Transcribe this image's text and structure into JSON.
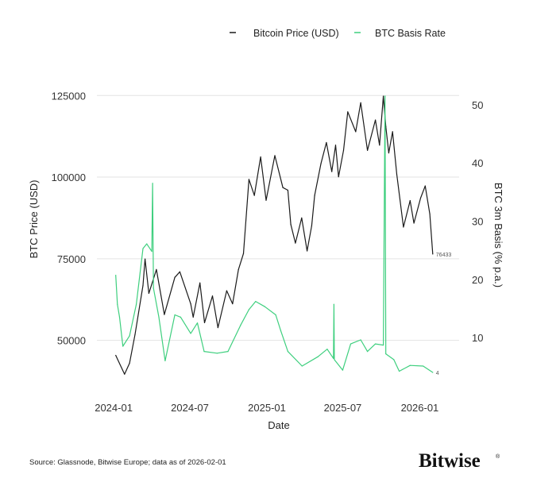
{
  "chart_data": {
    "type": "line",
    "xlabel": "Date",
    "ylabel_left": "BTC Price (USD)",
    "ylabel_right": "BTC 3m Basis (% p.a.)",
    "xlim": [
      "2023-11-22",
      "2026-04-05"
    ],
    "ylim_left": [
      37500,
      127500
    ],
    "ylim_right": [
      2.5,
      53
    ],
    "x_ticks": [
      "2024-01",
      "2024-07",
      "2025-01",
      "2025-07",
      "2026-01"
    ],
    "y_ticks_left": [
      50000,
      75000,
      100000,
      125000
    ],
    "y_ticks_right": [
      10,
      20,
      30,
      40,
      50
    ],
    "grid": "horizontal",
    "legend_position": "top-right",
    "colors": {
      "price": "#1a1a1a",
      "basis": "#3ecf7e"
    },
    "series": [
      {
        "name": "Bitcoin Price (USD)",
        "axis": "left",
        "end_label": "76433",
        "points": [
          [
            "2024-01-06",
            45400
          ],
          [
            "2024-01-27",
            39650
          ],
          [
            "2024-02-08",
            43000
          ],
          [
            "2024-02-21",
            51800
          ],
          [
            "2024-03-11",
            66800
          ],
          [
            "2024-03-16",
            74900
          ],
          [
            "2024-03-25",
            64400
          ],
          [
            "2024-04-12",
            71700
          ],
          [
            "2024-05-01",
            57900
          ],
          [
            "2024-05-26",
            69300
          ],
          [
            "2024-06-07",
            71000
          ],
          [
            "2024-07-03",
            61200
          ],
          [
            "2024-07-09",
            57100
          ],
          [
            "2024-07-25",
            67600
          ],
          [
            "2024-08-05",
            55400
          ],
          [
            "2024-08-24",
            63600
          ],
          [
            "2024-09-06",
            53900
          ],
          [
            "2024-09-27",
            65200
          ],
          [
            "2024-10-11",
            61200
          ],
          [
            "2024-10-25",
            71700
          ],
          [
            "2024-11-06",
            76600
          ],
          [
            "2024-11-19",
            99300
          ],
          [
            "2024-12-02",
            94400
          ],
          [
            "2024-12-17",
            106200
          ],
          [
            "2024-12-30",
            92900
          ],
          [
            "2025-01-20",
            106600
          ],
          [
            "2025-02-08",
            96800
          ],
          [
            "2025-02-20",
            96000
          ],
          [
            "2025-02-27",
            85500
          ],
          [
            "2025-03-10",
            79800
          ],
          [
            "2025-03-25",
            87500
          ],
          [
            "2025-04-07",
            77400
          ],
          [
            "2025-04-18",
            85100
          ],
          [
            "2025-04-25",
            94400
          ],
          [
            "2025-05-10",
            104100
          ],
          [
            "2025-05-23",
            110600
          ],
          [
            "2025-06-05",
            101700
          ],
          [
            "2025-06-14",
            109800
          ],
          [
            "2025-06-21",
            100100
          ],
          [
            "2025-07-03",
            108200
          ],
          [
            "2025-07-13",
            120000
          ],
          [
            "2025-08-01",
            113900
          ],
          [
            "2025-08-13",
            122800
          ],
          [
            "2025-08-29",
            108200
          ],
          [
            "2025-09-17",
            117500
          ],
          [
            "2025-09-27",
            109800
          ],
          [
            "2025-10-06",
            124800
          ],
          [
            "2025-10-12",
            115500
          ],
          [
            "2025-10-19",
            107400
          ],
          [
            "2025-10-28",
            113900
          ],
          [
            "2025-11-07",
            100900
          ],
          [
            "2025-11-23",
            84700
          ],
          [
            "2025-12-09",
            92800
          ],
          [
            "2025-12-18",
            85900
          ],
          [
            "2026-01-03",
            93600
          ],
          [
            "2026-01-14",
            97300
          ],
          [
            "2026-01-25",
            88700
          ],
          [
            "2026-02-01",
            76433
          ]
        ]
      },
      {
        "name": "BTC Basis Rate",
        "axis": "right",
        "end_label": "4",
        "points": [
          [
            "2024-01-06",
            20.7
          ],
          [
            "2024-01-10",
            15.7
          ],
          [
            "2024-01-15",
            13.5
          ],
          [
            "2024-01-23",
            8.5
          ],
          [
            "2024-02-08",
            10.3
          ],
          [
            "2024-02-24",
            15.7
          ],
          [
            "2024-03-11",
            25.3
          ],
          [
            "2024-03-20",
            26.1
          ],
          [
            "2024-04-01",
            24.8
          ],
          [
            "2024-04-03",
            36.5
          ],
          [
            "2024-04-05",
            18.5
          ],
          [
            "2024-04-18",
            13.5
          ],
          [
            "2024-05-03",
            6.0
          ],
          [
            "2024-05-26",
            13.9
          ],
          [
            "2024-06-09",
            13.5
          ],
          [
            "2024-07-03",
            10.7
          ],
          [
            "2024-07-19",
            12.5
          ],
          [
            "2024-08-04",
            7.6
          ],
          [
            "2024-09-04",
            7.3
          ],
          [
            "2024-09-30",
            7.6
          ],
          [
            "2024-10-30",
            12.1
          ],
          [
            "2024-11-19",
            14.8
          ],
          [
            "2024-12-05",
            16.2
          ],
          [
            "2024-12-27",
            15.3
          ],
          [
            "2025-01-22",
            13.9
          ],
          [
            "2025-02-03",
            11.2
          ],
          [
            "2025-02-20",
            7.6
          ],
          [
            "2025-03-26",
            5.1
          ],
          [
            "2025-05-03",
            6.7
          ],
          [
            "2025-05-25",
            8.0
          ],
          [
            "2025-06-09",
            6.4
          ],
          [
            "2025-06-10",
            15.7
          ],
          [
            "2025-06-11",
            6.2
          ],
          [
            "2025-07-01",
            4.4
          ],
          [
            "2025-07-20",
            8.9
          ],
          [
            "2025-08-13",
            9.6
          ],
          [
            "2025-08-29",
            7.6
          ],
          [
            "2025-09-17",
            8.9
          ],
          [
            "2025-10-06",
            8.7
          ],
          [
            "2025-10-10",
            51.5
          ],
          [
            "2025-10-12",
            7.2
          ],
          [
            "2025-10-31",
            6.2
          ],
          [
            "2025-11-13",
            4.2
          ],
          [
            "2025-12-09",
            5.2
          ],
          [
            "2026-01-09",
            5.1
          ],
          [
            "2026-02-01",
            4.0
          ]
        ]
      }
    ]
  },
  "legend": {
    "price": "Bitcoin Price (USD)",
    "basis": "BTC Basis Rate"
  },
  "footer": {
    "source": "Source: Glassnode, Bitwise Europe; data as of 2026-02-01",
    "logo": "Bitwise",
    "logo_mark": "®"
  }
}
